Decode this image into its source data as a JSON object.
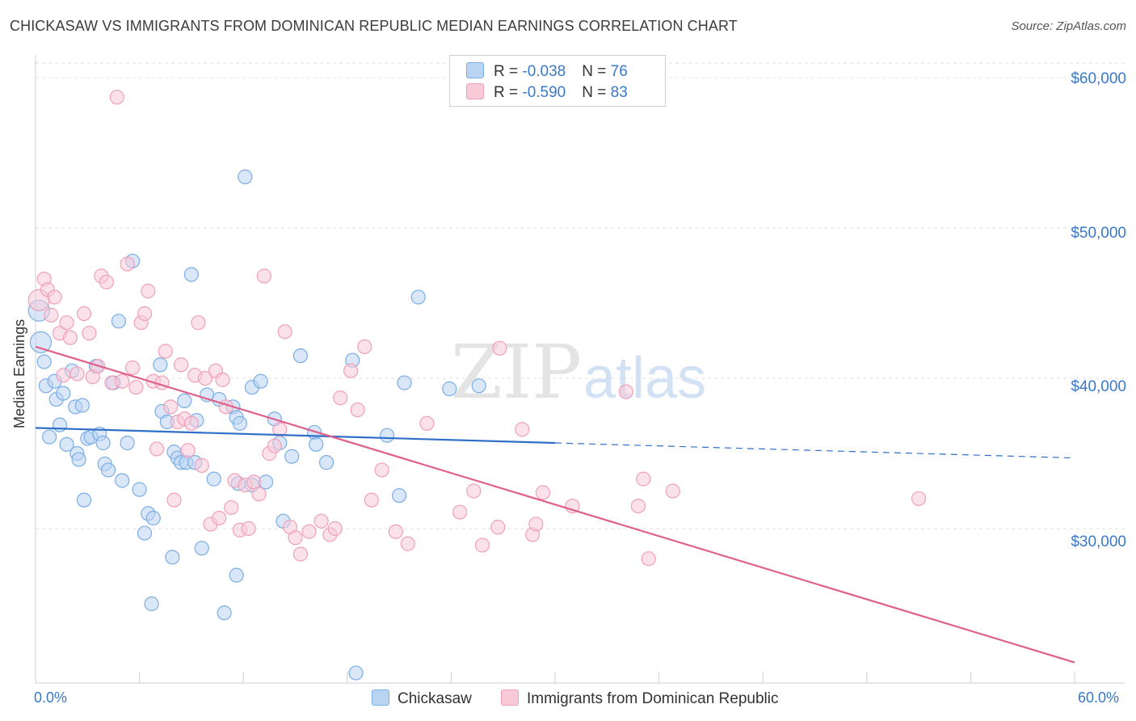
{
  "chart_data": {
    "type": "scatter",
    "title": "CHICKASAW VS IMMIGRANTS FROM DOMINICAN REPUBLIC MEDIAN EARNINGS CORRELATION CHART",
    "source": "Source: ZipAtlas.com",
    "watermark": "ZIPatlas",
    "xlabel": "",
    "ylabel": "Median Earnings",
    "xlim": [
      0,
      60
    ],
    "ylim": [
      20000,
      62000
    ],
    "x_tick_labels": {
      "min": "0.0%",
      "max": "60.0%"
    },
    "y_ticks": [
      {
        "value": 30000,
        "label": "$30,000"
      },
      {
        "value": 40000,
        "label": "$40,000"
      },
      {
        "value": 50000,
        "label": "$50,000"
      },
      {
        "value": 60000,
        "label": "$60,000"
      }
    ],
    "legend": [
      {
        "r_label": "R = ",
        "r_value": "-0.038",
        "n_label": "N = ",
        "n_value": "76"
      },
      {
        "r_label": "R = ",
        "r_value": "-0.590",
        "n_label": "N = ",
        "n_value": "83"
      }
    ],
    "series": [
      {
        "name": "Chickasaw",
        "color": "#7aaee6",
        "fill": "#b9d3f2",
        "trend": {
          "x0": 0,
          "y0": 36700,
          "x1": 30,
          "y1": 35700,
          "dash_to_x": 60,
          "dash_to_y": 34700,
          "color": "#2f6fc8"
        },
        "points": [
          [
            0.2,
            44500
          ],
          [
            0.3,
            42400
          ],
          [
            0.5,
            41100
          ],
          [
            0.6,
            39500
          ],
          [
            1.1,
            39800
          ],
          [
            1.2,
            38600
          ],
          [
            1.4,
            36900
          ],
          [
            1.6,
            39000
          ],
          [
            0.8,
            36100
          ],
          [
            1.8,
            35600
          ],
          [
            2.1,
            40500
          ],
          [
            2.3,
            38100
          ],
          [
            2.4,
            35000
          ],
          [
            2.5,
            34600
          ],
          [
            2.7,
            38200
          ],
          [
            2.8,
            31900
          ],
          [
            3.0,
            36000
          ],
          [
            3.2,
            36100
          ],
          [
            3.5,
            40800
          ],
          [
            3.7,
            36300
          ],
          [
            3.9,
            35700
          ],
          [
            4.0,
            34300
          ],
          [
            4.2,
            33900
          ],
          [
            4.5,
            39700
          ],
          [
            4.8,
            43800
          ],
          [
            5.0,
            33200
          ],
          [
            5.3,
            35700
          ],
          [
            5.6,
            47800
          ],
          [
            6.0,
            32600
          ],
          [
            6.3,
            29700
          ],
          [
            6.5,
            31000
          ],
          [
            6.8,
            30700
          ],
          [
            6.7,
            25000
          ],
          [
            7.2,
            40900
          ],
          [
            7.3,
            37800
          ],
          [
            7.6,
            37100
          ],
          [
            7.9,
            28100
          ],
          [
            8.0,
            35100
          ],
          [
            8.2,
            34700
          ],
          [
            8.4,
            34400
          ],
          [
            8.6,
            38500
          ],
          [
            8.7,
            34400
          ],
          [
            9.0,
            46900
          ],
          [
            9.2,
            34400
          ],
          [
            9.3,
            37200
          ],
          [
            9.6,
            28700
          ],
          [
            9.9,
            38900
          ],
          [
            10.3,
            33300
          ],
          [
            10.6,
            38600
          ],
          [
            10.9,
            24400
          ],
          [
            11.4,
            38100
          ],
          [
            11.6,
            37400
          ],
          [
            11.8,
            37000
          ],
          [
            11.7,
            33000
          ],
          [
            12.1,
            53400
          ],
          [
            11.6,
            26900
          ],
          [
            12.5,
            39400
          ],
          [
            12.5,
            32900
          ],
          [
            13.0,
            39800
          ],
          [
            13.3,
            33100
          ],
          [
            13.8,
            37300
          ],
          [
            14.1,
            35700
          ],
          [
            14.3,
            30500
          ],
          [
            14.8,
            34800
          ],
          [
            15.3,
            41500
          ],
          [
            16.1,
            36400
          ],
          [
            16.2,
            35600
          ],
          [
            16.8,
            34400
          ],
          [
            18.3,
            41200
          ],
          [
            18.5,
            20400
          ],
          [
            20.3,
            36200
          ],
          [
            21.0,
            32200
          ],
          [
            21.3,
            39700
          ],
          [
            22.1,
            45400
          ],
          [
            23.9,
            39300
          ],
          [
            25.6,
            39500
          ]
        ]
      },
      {
        "name": "Immigrants from Dominican Republic",
        "color": "#f0a0b8",
        "fill": "#f8cad8",
        "trend": {
          "x0": 0,
          "y0": 42100,
          "x1": 60,
          "y1": 21100,
          "color": "#e0608a"
        },
        "points": [
          [
            0.2,
            45200
          ],
          [
            0.5,
            46600
          ],
          [
            0.7,
            45900
          ],
          [
            0.9,
            44200
          ],
          [
            1.1,
            45400
          ],
          [
            1.4,
            43000
          ],
          [
            1.6,
            40200
          ],
          [
            1.8,
            43700
          ],
          [
            2.0,
            42700
          ],
          [
            2.4,
            40300
          ],
          [
            2.8,
            44300
          ],
          [
            3.1,
            43000
          ],
          [
            3.3,
            40100
          ],
          [
            3.6,
            40800
          ],
          [
            3.8,
            46800
          ],
          [
            4.1,
            46400
          ],
          [
            4.4,
            39700
          ],
          [
            4.7,
            58700
          ],
          [
            5.0,
            39800
          ],
          [
            5.3,
            47600
          ],
          [
            5.6,
            40700
          ],
          [
            5.8,
            39400
          ],
          [
            6.1,
            43700
          ],
          [
            6.3,
            44300
          ],
          [
            6.5,
            45800
          ],
          [
            6.8,
            39800
          ],
          [
            7.0,
            35300
          ],
          [
            7.3,
            39700
          ],
          [
            7.5,
            41800
          ],
          [
            7.8,
            38100
          ],
          [
            8.0,
            31900
          ],
          [
            8.2,
            37100
          ],
          [
            8.4,
            40900
          ],
          [
            8.6,
            37300
          ],
          [
            8.8,
            35200
          ],
          [
            9.0,
            37000
          ],
          [
            9.2,
            40200
          ],
          [
            9.4,
            43700
          ],
          [
            9.6,
            34200
          ],
          [
            9.8,
            40000
          ],
          [
            10.1,
            30300
          ],
          [
            10.4,
            40500
          ],
          [
            10.6,
            30700
          ],
          [
            10.8,
            39900
          ],
          [
            11.0,
            38100
          ],
          [
            11.3,
            31400
          ],
          [
            11.5,
            33200
          ],
          [
            11.8,
            29900
          ],
          [
            12.1,
            32900
          ],
          [
            12.3,
            30000
          ],
          [
            12.6,
            33100
          ],
          [
            12.9,
            32300
          ],
          [
            13.2,
            46800
          ],
          [
            13.5,
            35000
          ],
          [
            13.8,
            35500
          ],
          [
            14.1,
            36600
          ],
          [
            14.4,
            43100
          ],
          [
            14.7,
            30100
          ],
          [
            15.0,
            29400
          ],
          [
            15.3,
            28300
          ],
          [
            15.8,
            29800
          ],
          [
            16.5,
            30500
          ],
          [
            17.0,
            29600
          ],
          [
            17.3,
            30000
          ],
          [
            17.6,
            38700
          ],
          [
            18.2,
            40500
          ],
          [
            18.6,
            37900
          ],
          [
            19.0,
            42100
          ],
          [
            19.4,
            31900
          ],
          [
            20.0,
            33900
          ],
          [
            20.8,
            29800
          ],
          [
            21.5,
            29000
          ],
          [
            22.6,
            37000
          ],
          [
            24.5,
            31100
          ],
          [
            25.3,
            32500
          ],
          [
            25.8,
            28900
          ],
          [
            26.8,
            42000
          ],
          [
            26.7,
            30100
          ],
          [
            28.1,
            36600
          ],
          [
            28.7,
            29600
          ],
          [
            29.3,
            32400
          ],
          [
            31.0,
            31500
          ],
          [
            35.4,
            28000
          ]
        ],
        "extra_points": [
          [
            28.9,
            30300
          ],
          [
            34.1,
            39100
          ],
          [
            34.8,
            31500
          ],
          [
            35.1,
            33300
          ],
          [
            36.8,
            32500
          ],
          [
            51.0,
            32000
          ]
        ]
      }
    ]
  }
}
